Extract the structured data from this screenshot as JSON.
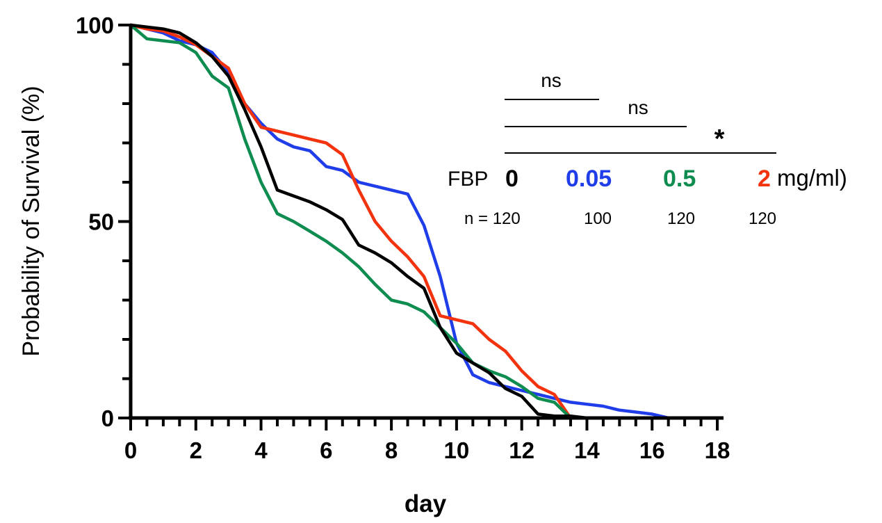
{
  "chart_data": {
    "type": "line",
    "step": false,
    "xlabel": "day",
    "ylabel": "Probability of Survival (%)",
    "xlim": [
      0,
      18
    ],
    "ylim": [
      0,
      100
    ],
    "x_ticks": [
      0,
      2,
      4,
      6,
      8,
      10,
      12,
      14,
      16,
      18
    ],
    "x_minor_step": 0.5,
    "y_ticks": [
      0,
      50,
      100
    ],
    "y_minor_step": 10,
    "grid": false,
    "series": [
      {
        "dose": "0.05",
        "color": "#1f3de8",
        "x": [
          0,
          0.5,
          1,
          1.5,
          2,
          2.5,
          3,
          3.5,
          4,
          4.5,
          5,
          5.5,
          6,
          6.5,
          7,
          7.5,
          8,
          8.5,
          9,
          9.5,
          10,
          10.5,
          11,
          11.5,
          12,
          12.5,
          13,
          13.5,
          14,
          14.5,
          15,
          15.5,
          16,
          16.5
        ],
        "y": [
          100,
          99,
          98,
          96,
          95,
          93,
          88,
          80,
          75,
          71,
          69,
          68,
          64,
          63,
          60,
          59,
          58,
          57,
          49,
          36,
          19,
          11,
          9,
          8,
          7,
          6,
          5,
          4,
          3.5,
          3,
          2,
          1.5,
          1,
          0
        ]
      },
      {
        "dose": "2",
        "color": "#f2330d",
        "x": [
          0,
          0.5,
          1,
          1.5,
          2,
          2.5,
          3,
          3.5,
          4,
          4.5,
          5,
          5.5,
          6,
          6.5,
          7,
          7.5,
          8,
          8.5,
          9,
          9.5,
          10,
          10.5,
          11,
          11.5,
          12,
          12.5,
          13,
          13.5
        ],
        "y": [
          100,
          99,
          98.5,
          97,
          95,
          92,
          89,
          80,
          74,
          73,
          72,
          71,
          70,
          67,
          58,
          50,
          45,
          41,
          36,
          26,
          25,
          24,
          20,
          17,
          12,
          8,
          6,
          0
        ]
      },
      {
        "dose": "0.5",
        "color": "#0f8c4f",
        "x": [
          0,
          0.5,
          1,
          1.5,
          2,
          2.5,
          3,
          3.5,
          4,
          4.5,
          5,
          5.5,
          6,
          6.5,
          7,
          7.5,
          8,
          8.5,
          9,
          9.5,
          10,
          10.5,
          11,
          11.5,
          12,
          12.5,
          13,
          13.5
        ],
        "y": [
          100,
          96.5,
          96,
          95.5,
          93,
          87,
          84,
          71,
          60,
          52,
          50,
          47.5,
          45,
          42,
          38.5,
          34,
          30,
          29,
          27,
          23,
          19,
          14,
          12,
          10.5,
          8,
          5,
          4,
          0
        ]
      },
      {
        "dose": "0",
        "color": "#000000",
        "x": [
          0,
          0.5,
          1,
          1.5,
          2,
          2.5,
          3,
          3.5,
          4,
          4.5,
          5,
          5.5,
          6,
          6.5,
          7,
          7.5,
          8,
          8.5,
          9,
          9.5,
          10,
          10.5,
          11,
          11.5,
          12,
          12.5,
          13,
          13.5,
          14
        ],
        "y": [
          100,
          99.5,
          99,
          98,
          95.5,
          92,
          87,
          78.5,
          69,
          58,
          56.5,
          55,
          53,
          50.5,
          44,
          42,
          39.5,
          36,
          33,
          23,
          16.5,
          14,
          11.5,
          7.5,
          5.5,
          1,
          0.5,
          0.5,
          0
        ]
      }
    ],
    "annotations": {
      "ns1": "ns",
      "ns2": "ns",
      "star": "*",
      "legend_prefix": "FBP",
      "legend_unit": "mg/ml)",
      "n_label": "n = 120",
      "n_values": [
        "100",
        "120",
        "120"
      ]
    }
  }
}
